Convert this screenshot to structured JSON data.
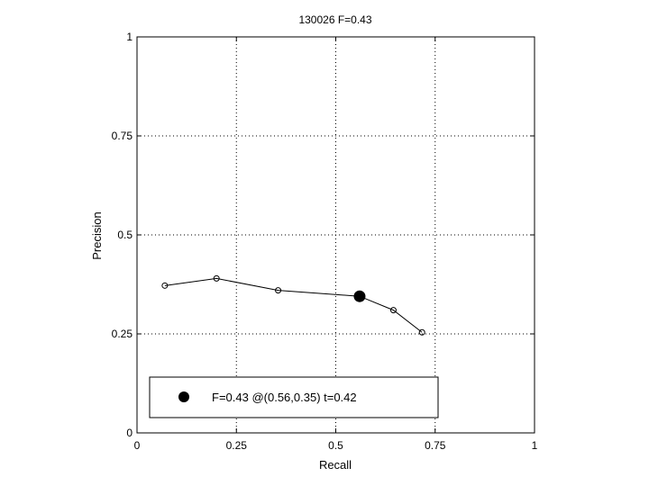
{
  "chart_data": {
    "type": "line",
    "title": "130026 F=0.43",
    "xlabel": "Recall",
    "ylabel": "Precision",
    "xlim": [
      0,
      1
    ],
    "ylim": [
      0,
      1
    ],
    "x_ticks": [
      0,
      0.25,
      0.5,
      0.75,
      1
    ],
    "y_ticks": [
      0,
      0.25,
      0.5,
      0.75,
      1
    ],
    "x_tick_labels": [
      "0",
      "0.25",
      "0.5",
      "0.75",
      "1"
    ],
    "y_tick_labels": [
      "0",
      "0.25",
      "0.5",
      "0.75",
      "1"
    ],
    "grid": true,
    "grid_style": "dotted",
    "series": [
      {
        "x": [
          0.07,
          0.2,
          0.355,
          0.56,
          0.645,
          0.717
        ],
        "y": [
          0.372,
          0.39,
          0.36,
          0.345,
          0.31,
          0.254
        ]
      }
    ],
    "best_point": {
      "x": 0.56,
      "y": 0.345
    },
    "legend": {
      "placement": "bottom-left",
      "label": "F=0.43 @(0.56,0.35) t=0.42"
    },
    "colors": {
      "line": "#000000",
      "background": "#ffffff"
    }
  }
}
